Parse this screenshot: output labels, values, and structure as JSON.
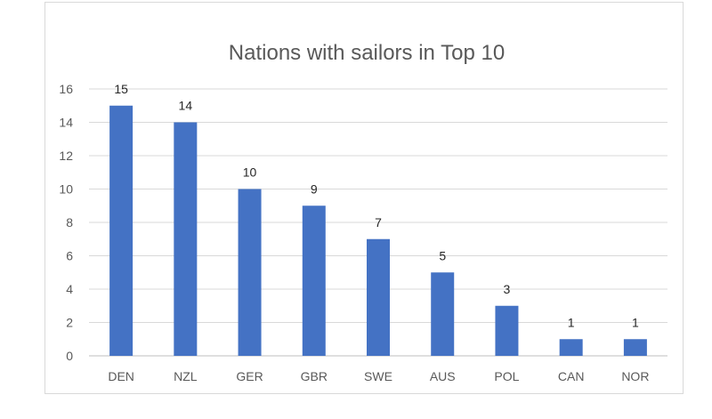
{
  "chart_data": {
    "type": "bar",
    "title": "Nations with sailors in Top 10",
    "xlabel": "",
    "ylabel": "",
    "categories": [
      "DEN",
      "NZL",
      "GER",
      "GBR",
      "SWE",
      "AUS",
      "POL",
      "CAN",
      "NOR"
    ],
    "values": [
      15,
      14,
      10,
      9,
      7,
      5,
      3,
      1,
      1
    ],
    "ylim": [
      0,
      16
    ],
    "yticks": [
      0,
      2,
      4,
      6,
      8,
      10,
      12,
      14,
      16
    ],
    "grid": true,
    "legend": "none",
    "data_labels": true,
    "bar_color": "#4472c4",
    "grid_color": "#d9d9d9"
  }
}
